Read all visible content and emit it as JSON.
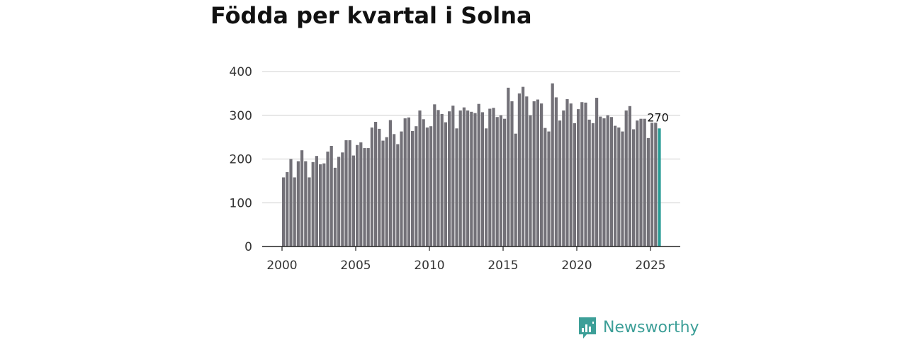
{
  "chart_data": {
    "type": "bar",
    "title": "Födda per kvartal i Solna",
    "xlabel": "",
    "ylabel": "",
    "ylim": [
      0,
      400
    ],
    "y_ticks": [
      0,
      100,
      200,
      300,
      400
    ],
    "x_ticks": [
      "2000",
      "2005",
      "2010",
      "2015",
      "2020",
      "2025"
    ],
    "grid": true,
    "start_year": 2000,
    "series": [
      {
        "values": [
          158,
          170,
          200,
          158,
          195,
          220,
          195,
          158,
          193,
          207,
          188,
          190,
          217,
          230,
          180,
          205,
          215,
          243,
          243,
          208,
          232,
          238,
          225,
          225,
          272,
          285,
          269,
          242,
          250,
          289,
          257,
          234,
          263,
          293,
          295,
          264,
          275,
          311,
          291,
          272,
          275,
          325,
          312,
          303,
          284,
          309,
          322,
          270,
          311,
          318,
          311,
          308,
          305,
          326,
          307,
          270,
          315,
          317,
          296,
          300,
          292,
          363,
          332,
          258,
          350,
          365,
          343,
          300,
          332,
          336,
          327,
          271,
          263,
          373,
          341,
          288,
          311,
          337,
          327,
          282,
          314,
          330,
          329,
          290,
          282,
          340,
          297,
          293,
          300,
          296,
          276,
          272,
          263,
          311,
          321,
          268,
          288,
          292,
          292,
          248,
          283,
          283,
          270
        ],
        "colors": {
          "default": "#737178",
          "highlight": "#2a9d96"
        }
      }
    ],
    "annotations": [
      {
        "label": "270"
      }
    ]
  },
  "brand": {
    "name": "Newsworthy",
    "icon": "bar-chart-speech-bubble-icon",
    "color": "#3d9f98"
  }
}
